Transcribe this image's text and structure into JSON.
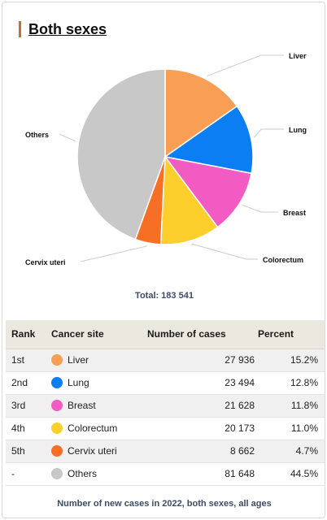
{
  "title": "Both sexes",
  "total": {
    "label": "Total:",
    "value": "183 541"
  },
  "chart_data": {
    "type": "pie",
    "slices": [
      {
        "label": "Liver",
        "value": 27936,
        "percent": 15.2,
        "color": "#f89e55"
      },
      {
        "label": "Lung",
        "value": 23494,
        "percent": 12.8,
        "color": "#0a7ef2"
      },
      {
        "label": "Breast",
        "value": 21628,
        "percent": 11.8,
        "color": "#f25cc2"
      },
      {
        "label": "Colorectum",
        "value": 20173,
        "percent": 11.0,
        "color": "#fccf2c"
      },
      {
        "label": "Cervix uteri",
        "value": 8662,
        "percent": 4.7,
        "color": "#f76f24"
      },
      {
        "label": "Others",
        "value": 81648,
        "percent": 44.5,
        "color": "#c8c8c8"
      }
    ]
  },
  "table": {
    "headers": {
      "rank": "Rank",
      "site": "Cancer site",
      "cases": "Number of cases",
      "percent": "Percent"
    },
    "rows": [
      {
        "rank": "1st",
        "site": "Liver",
        "cases": "27 936",
        "percent": "15.2%",
        "color": "#f89e55"
      },
      {
        "rank": "2nd",
        "site": "Lung",
        "cases": "23 494",
        "percent": "12.8%",
        "color": "#0a7ef2"
      },
      {
        "rank": "3rd",
        "site": "Breast",
        "cases": "21 628",
        "percent": "11.8%",
        "color": "#f25cc2"
      },
      {
        "rank": "4th",
        "site": "Colorectum",
        "cases": "20 173",
        "percent": "11.0%",
        "color": "#fccf2c"
      },
      {
        "rank": "5th",
        "site": "Cervix uteri",
        "cases": "8 662",
        "percent": "4.7%",
        "color": "#f76f24"
      },
      {
        "rank": "-",
        "site": "Others",
        "cases": "81 648",
        "percent": "44.5%",
        "color": "#c8c8c8"
      }
    ]
  },
  "caption": "Number of new cases in 2022, both sexes, all ages"
}
